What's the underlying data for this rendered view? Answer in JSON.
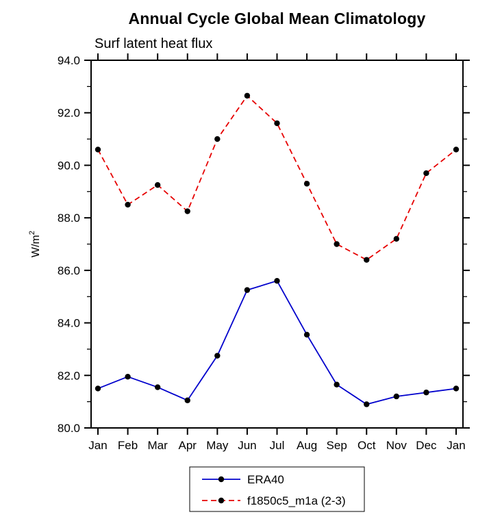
{
  "chart_data": {
    "type": "line",
    "title": "Annual Cycle Global Mean Climatology",
    "subtitle": "Surf latent heat flux",
    "ylabel": "W/m2",
    "ylabel_base": "W/m",
    "ylabel_superscript": "2",
    "categories": [
      "Jan",
      "Feb",
      "Mar",
      "Apr",
      "May",
      "Jun",
      "Jul",
      "Aug",
      "Sep",
      "Oct",
      "Nov",
      "Dec",
      "Jan"
    ],
    "ylim": [
      80.0,
      94.0
    ],
    "ytick_major_interval": 2.0,
    "ytick_minor_interval": 1.0,
    "ytick_labels": [
      "80.0",
      "82.0",
      "84.0",
      "86.0",
      "88.0",
      "90.0",
      "92.0",
      "94.0"
    ],
    "grid": false,
    "legend_position": "bottom-center",
    "marker": "filled-circle",
    "marker_color": "#000000",
    "series": [
      {
        "name": "ERA40",
        "color": "#0000cc",
        "line_style": "solid",
        "values": [
          81.5,
          81.95,
          81.55,
          81.05,
          82.75,
          85.25,
          85.6,
          83.55,
          81.65,
          80.9,
          81.2,
          81.35,
          81.5
        ]
      },
      {
        "name": "f1850c5_m1a (2-3)",
        "color": "#e60000",
        "line_style": "dashed",
        "values": [
          90.6,
          88.5,
          89.25,
          88.25,
          91.0,
          92.65,
          91.6,
          89.3,
          87.0,
          86.4,
          87.2,
          89.7,
          90.6
        ]
      }
    ]
  }
}
